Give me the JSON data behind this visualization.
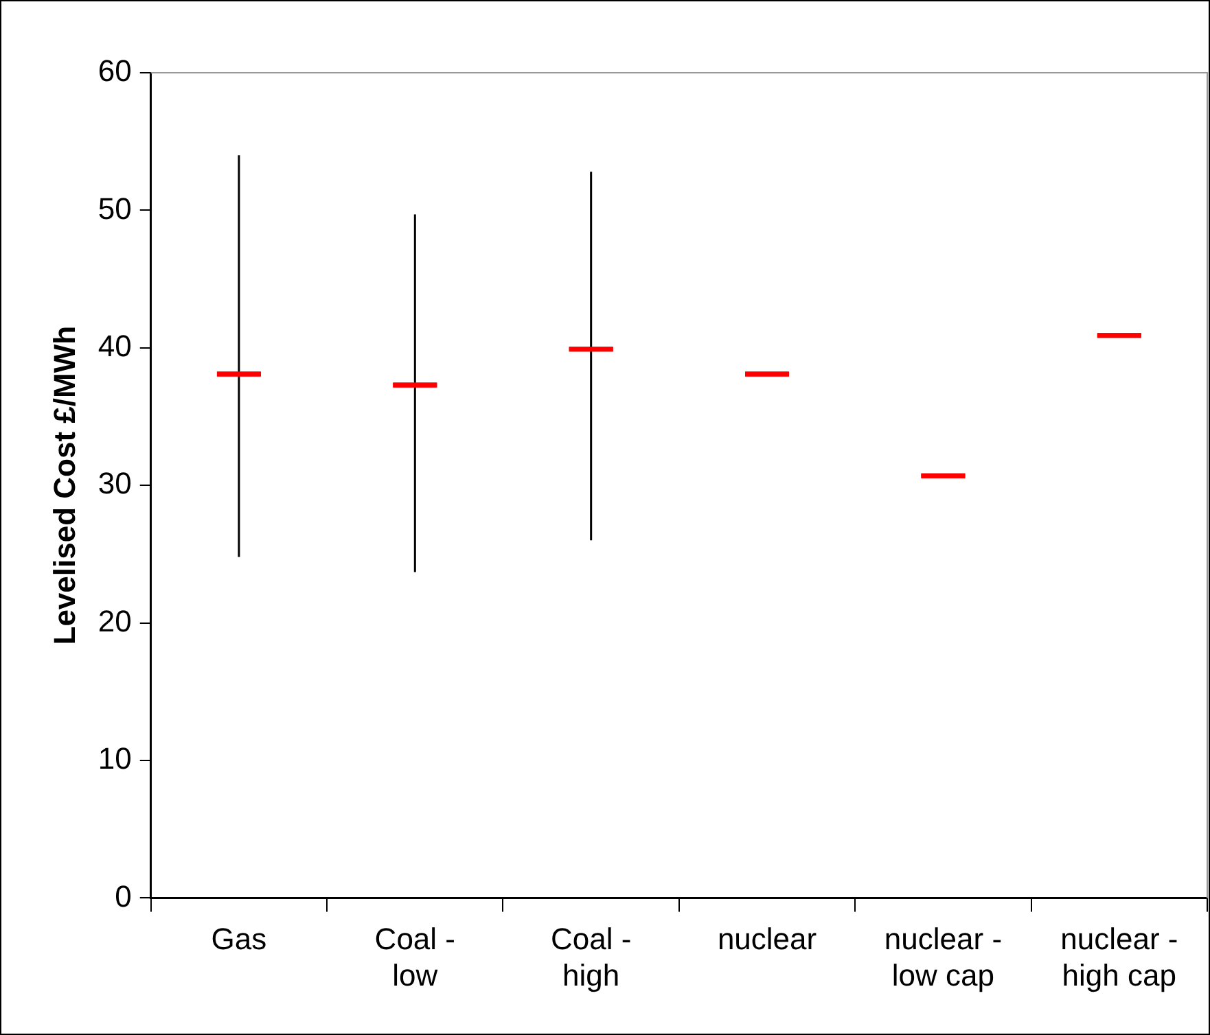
{
  "chart_data": {
    "type": "box",
    "ylabel": "Levelised Cost £/MWh",
    "categories": [
      "Gas",
      "Coal - low",
      "Coal - high",
      "nuclear",
      "nuclear - low cap",
      "nuclear - high cap"
    ],
    "boxes": [
      {
        "low": 24.8,
        "q1": 38.1,
        "median": 38.1,
        "q3": 38.1,
        "high": 54.0
      },
      {
        "low": 23.7,
        "q1": 37.3,
        "median": 37.3,
        "q3": 37.3,
        "high": 49.7
      },
      {
        "low": 26.0,
        "q1": 39.9,
        "median": 39.9,
        "q3": 39.9,
        "high": 52.8
      },
      {
        "low": 38.1,
        "q1": 38.1,
        "median": 38.1,
        "q3": 38.1,
        "high": 38.1
      },
      {
        "low": 30.7,
        "q1": 30.7,
        "median": 30.7,
        "q3": 30.7,
        "high": 30.7
      },
      {
        "low": 40.9,
        "q1": 40.9,
        "median": 40.9,
        "q3": 40.9,
        "high": 40.9
      }
    ],
    "color": "#ff0000",
    "ylim": [
      0,
      60
    ],
    "yticks": [
      0,
      10,
      20,
      30,
      40,
      50,
      60
    ],
    "grid": false,
    "legend": false
  }
}
